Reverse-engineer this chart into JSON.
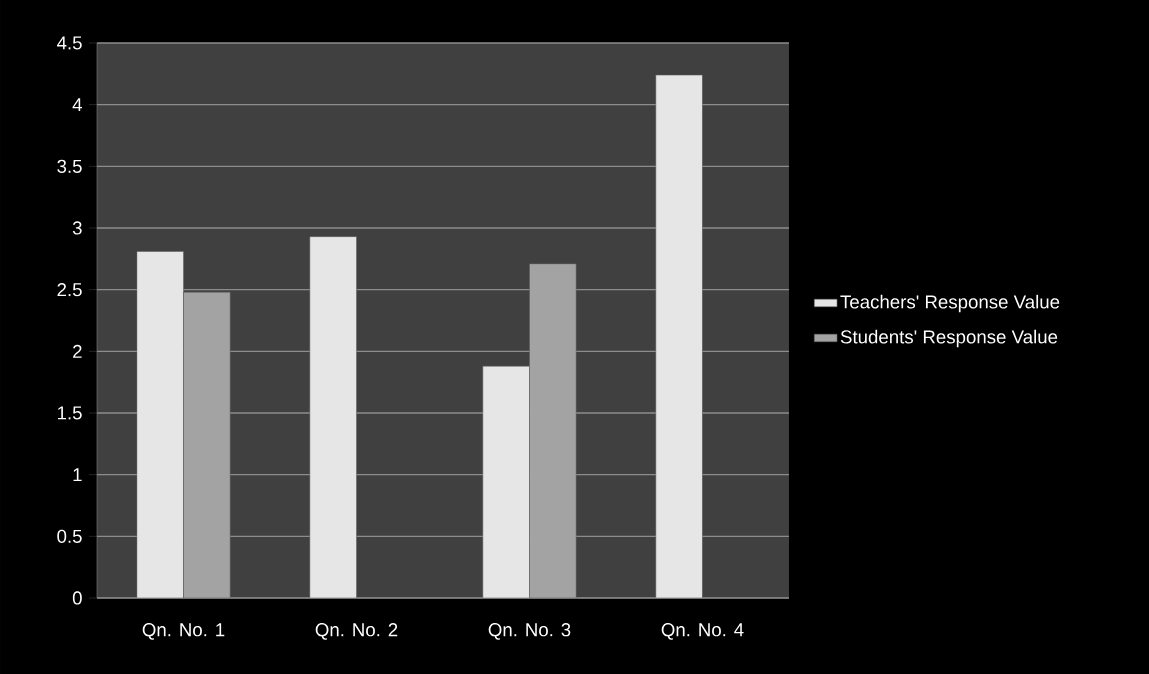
{
  "chart_data": {
    "type": "bar",
    "categories": [
      "Qn. No. 1",
      "Qn. No. 2",
      "Qn. No. 3",
      "Qn. No. 4"
    ],
    "series": [
      {
        "name": "Teachers' Response Value",
        "color": "#e6e6e6",
        "values": [
          2.81,
          2.93,
          1.88,
          4.24
        ]
      },
      {
        "name": "Students' Response Value",
        "color": "#a3a3a3",
        "values": [
          2.48,
          null,
          2.71,
          null
        ]
      }
    ],
    "ylim": [
      0,
      4.5
    ],
    "yticks": [
      0,
      0.5,
      1,
      1.5,
      2,
      2.5,
      3,
      3.5,
      4,
      4.5
    ],
    "grid": "y",
    "legend": "right"
  }
}
